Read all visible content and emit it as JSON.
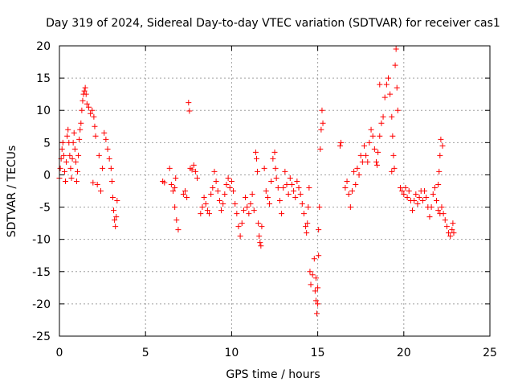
{
  "chart_data": {
    "type": "scatter",
    "title": "Day 319 of 2024, Sidereal Day-to-day VTEC variation (SDTVAR) for receiver cas1",
    "xlabel": "GPS time / hours",
    "ylabel": "SDTVAR / TECUs",
    "xlim": [
      0,
      25
    ],
    "ylim": [
      -25,
      20
    ],
    "xticks": [
      0,
      5,
      10,
      15,
      20,
      25
    ],
    "yticks": [
      -25,
      -20,
      -15,
      -10,
      -5,
      0,
      5,
      10,
      15,
      20
    ],
    "xtick_labels": [
      "0",
      "5",
      "10",
      "15",
      "20",
      "25"
    ],
    "ytick_labels": [
      "-25",
      "-20",
      "-15",
      "-10",
      "-5",
      "0",
      "5",
      "10",
      "15",
      "20"
    ],
    "grid": true,
    "marker": "plus",
    "series": [
      {
        "name": "SDTVAR",
        "color": "#ff0000",
        "points": [
          [
            0.0,
            -0.5
          ],
          [
            0.05,
            1.0
          ],
          [
            0.1,
            2.5
          ],
          [
            0.15,
            4.0
          ],
          [
            0.2,
            5.0
          ],
          [
            0.25,
            3.0
          ],
          [
            0.3,
            0.5
          ],
          [
            0.35,
            -1.0
          ],
          [
            0.4,
            2.0
          ],
          [
            0.45,
            6.0
          ],
          [
            0.5,
            7.0
          ],
          [
            0.55,
            5.0
          ],
          [
            0.6,
            3.0
          ],
          [
            0.65,
            1.0
          ],
          [
            0.7,
            -0.5
          ],
          [
            0.75,
            2.5
          ],
          [
            0.8,
            5.0
          ],
          [
            0.85,
            6.5
          ],
          [
            0.9,
            4.0
          ],
          [
            0.95,
            2.0
          ],
          [
            1.0,
            -1.0
          ],
          [
            1.05,
            0.5
          ],
          [
            1.1,
            3.0
          ],
          [
            1.15,
            5.5
          ],
          [
            1.2,
            7.0
          ],
          [
            1.25,
            8.0
          ],
          [
            1.3,
            10.0
          ],
          [
            1.35,
            11.5
          ],
          [
            1.4,
            12.5
          ],
          [
            1.45,
            13.0
          ],
          [
            1.5,
            13.5
          ],
          [
            1.55,
            12.5
          ],
          [
            1.6,
            11.0
          ],
          [
            1.7,
            10.5
          ],
          [
            1.8,
            9.5
          ],
          [
            1.9,
            10.0
          ],
          [
            2.0,
            9.0
          ],
          [
            2.05,
            7.5
          ],
          [
            2.1,
            6.0
          ],
          [
            1.95,
            -1.2
          ],
          [
            2.2,
            -1.5
          ],
          [
            2.3,
            3.0
          ],
          [
            2.4,
            -2.5
          ],
          [
            2.5,
            1.0
          ],
          [
            2.6,
            6.5
          ],
          [
            2.7,
            5.5
          ],
          [
            2.8,
            4.0
          ],
          [
            2.9,
            2.5
          ],
          [
            3.0,
            1.0
          ],
          [
            3.05,
            -1.0
          ],
          [
            3.1,
            -3.5
          ],
          [
            3.15,
            -5.5
          ],
          [
            3.2,
            -7.0
          ],
          [
            3.25,
            -8.0
          ],
          [
            3.3,
            -6.5
          ],
          [
            3.35,
            -4.0
          ],
          [
            6.0,
            -1.0
          ],
          [
            6.1,
            -1.2
          ],
          [
            6.4,
            1.0
          ],
          [
            6.5,
            -1.5
          ],
          [
            6.6,
            -2.5
          ],
          [
            6.7,
            -5.0
          ],
          [
            6.8,
            -7.0
          ],
          [
            6.9,
            -8.5
          ],
          [
            6.7,
            -2.0
          ],
          [
            6.75,
            -0.5
          ],
          [
            7.2,
            -3.0
          ],
          [
            7.3,
            -2.5
          ],
          [
            7.4,
            -3.5
          ],
          [
            7.5,
            11.2
          ],
          [
            7.55,
            9.9
          ],
          [
            7.6,
            1.0
          ],
          [
            7.7,
            0.8
          ],
          [
            7.8,
            1.5
          ],
          [
            7.9,
            0.5
          ],
          [
            8.0,
            -0.5
          ],
          [
            8.2,
            -6.0
          ],
          [
            8.3,
            -5.0
          ],
          [
            8.4,
            -3.5
          ],
          [
            8.5,
            -4.5
          ],
          [
            8.6,
            -5.5
          ],
          [
            8.7,
            -6.0
          ],
          [
            8.8,
            -3.0
          ],
          [
            8.9,
            -2.0
          ],
          [
            9.0,
            0.5
          ],
          [
            9.1,
            -1.0
          ],
          [
            9.2,
            -2.5
          ],
          [
            9.3,
            -4.0
          ],
          [
            9.4,
            -5.5
          ],
          [
            9.5,
            -4.5
          ],
          [
            9.6,
            -3.0
          ],
          [
            9.7,
            -1.5
          ],
          [
            9.8,
            -0.5
          ],
          [
            9.9,
            -2.0
          ],
          [
            10.0,
            -1.0
          ],
          [
            10.1,
            -2.5
          ],
          [
            10.2,
            -4.5
          ],
          [
            10.3,
            -6.0
          ],
          [
            10.4,
            -8.0
          ],
          [
            10.5,
            -9.5
          ],
          [
            10.6,
            -7.5
          ],
          [
            10.7,
            -5.5
          ],
          [
            10.8,
            -3.5
          ],
          [
            10.9,
            -5.0
          ],
          [
            11.0,
            -6.0
          ],
          [
            11.1,
            -4.5
          ],
          [
            11.2,
            -3.0
          ],
          [
            11.3,
            -5.5
          ],
          [
            11.4,
            3.5
          ],
          [
            11.45,
            2.5
          ],
          [
            11.5,
            0.5
          ],
          [
            11.55,
            -7.5
          ],
          [
            11.6,
            -9.5
          ],
          [
            11.65,
            -10.5
          ],
          [
            11.7,
            -11.0
          ],
          [
            11.75,
            -8.0
          ],
          [
            11.9,
            1.0
          ],
          [
            12.0,
            -2.5
          ],
          [
            12.1,
            -3.5
          ],
          [
            12.2,
            -4.5
          ],
          [
            12.3,
            -1.0
          ],
          [
            12.4,
            2.5
          ],
          [
            12.5,
            3.5
          ],
          [
            12.55,
            1.0
          ],
          [
            12.6,
            -0.5
          ],
          [
            12.7,
            -2.0
          ],
          [
            12.8,
            -4.0
          ],
          [
            12.9,
            -6.0
          ],
          [
            13.0,
            -2.0
          ],
          [
            13.1,
            0.5
          ],
          [
            13.2,
            -1.5
          ],
          [
            13.3,
            -3.0
          ],
          [
            13.4,
            -0.5
          ],
          [
            13.5,
            -1.5
          ],
          [
            13.6,
            -2.5
          ],
          [
            13.7,
            -3.5
          ],
          [
            13.8,
            -1.0
          ],
          [
            13.9,
            -2.0
          ],
          [
            14.0,
            -3.0
          ],
          [
            14.1,
            -4.5
          ],
          [
            14.2,
            -6.0
          ],
          [
            14.3,
            -8.0
          ],
          [
            14.35,
            -9.0
          ],
          [
            14.4,
            -7.5
          ],
          [
            14.45,
            -5.0
          ],
          [
            14.5,
            -2.0
          ],
          [
            14.55,
            -15.0
          ],
          [
            14.6,
            -17.0
          ],
          [
            14.7,
            -15.5
          ],
          [
            14.8,
            -13.0
          ],
          [
            14.85,
            -18.0
          ],
          [
            14.9,
            -19.5
          ],
          [
            14.95,
            -21.5
          ],
          [
            15.0,
            -17.5
          ],
          [
            15.05,
            -12.5
          ],
          [
            15.1,
            -5.0
          ],
          [
            15.15,
            4.0
          ],
          [
            15.2,
            7.0
          ],
          [
            15.25,
            10.0
          ],
          [
            15.3,
            8.0
          ],
          [
            15.0,
            -20.0
          ],
          [
            14.9,
            -16.0
          ],
          [
            15.05,
            -8.5
          ],
          [
            16.3,
            4.5
          ],
          [
            16.35,
            5.0
          ],
          [
            16.6,
            -2.0
          ],
          [
            16.7,
            -1.0
          ],
          [
            16.8,
            -3.0
          ],
          [
            16.9,
            -5.0
          ],
          [
            17.0,
            -2.5
          ],
          [
            17.1,
            0.5
          ],
          [
            17.2,
            -1.5
          ],
          [
            17.3,
            1.0
          ],
          [
            17.4,
            0.0
          ],
          [
            17.5,
            3.0
          ],
          [
            17.6,
            2.0
          ],
          [
            17.7,
            4.5
          ],
          [
            17.8,
            3.0
          ],
          [
            17.9,
            2.0
          ],
          [
            18.0,
            5.0
          ],
          [
            18.1,
            7.0
          ],
          [
            18.2,
            6.0
          ],
          [
            18.3,
            4.0
          ],
          [
            18.4,
            2.0
          ],
          [
            18.5,
            3.5
          ],
          [
            18.6,
            6.0
          ],
          [
            18.7,
            8.0
          ],
          [
            18.8,
            9.0
          ],
          [
            18.9,
            12.0
          ],
          [
            19.0,
            14.0
          ],
          [
            19.1,
            15.0
          ],
          [
            19.2,
            12.5
          ],
          [
            19.3,
            9.0
          ],
          [
            19.35,
            6.0
          ],
          [
            19.4,
            3.0
          ],
          [
            19.45,
            1.0
          ],
          [
            19.5,
            17.0
          ],
          [
            19.55,
            19.5
          ],
          [
            19.6,
            13.5
          ],
          [
            19.65,
            10.0
          ],
          [
            19.3,
            0.5
          ],
          [
            18.45,
            1.5
          ],
          [
            18.6,
            14.0
          ],
          [
            19.8,
            -2.0
          ],
          [
            19.9,
            -2.5
          ],
          [
            20.0,
            -3.0
          ],
          [
            20.1,
            -2.0
          ],
          [
            20.2,
            -3.5
          ],
          [
            20.3,
            -2.5
          ],
          [
            20.4,
            -4.0
          ],
          [
            20.5,
            -5.5
          ],
          [
            20.6,
            -4.0
          ],
          [
            20.7,
            -3.0
          ],
          [
            20.8,
            -4.5
          ],
          [
            20.9,
            -3.5
          ],
          [
            21.0,
            -2.5
          ],
          [
            21.1,
            -4.0
          ],
          [
            21.2,
            -2.5
          ],
          [
            21.3,
            -3.5
          ],
          [
            21.4,
            -5.0
          ],
          [
            21.5,
            -6.5
          ],
          [
            21.6,
            -5.0
          ],
          [
            21.7,
            -3.0
          ],
          [
            21.8,
            -2.0
          ],
          [
            21.9,
            -4.0
          ],
          [
            22.0,
            -5.5
          ],
          [
            22.1,
            -6.0
          ],
          [
            22.2,
            -5.0
          ],
          [
            22.15,
            5.5
          ],
          [
            22.1,
            3.0
          ],
          [
            22.05,
            0.5
          ],
          [
            22.0,
            -1.5
          ],
          [
            22.25,
            4.5
          ],
          [
            22.3,
            -6.0
          ],
          [
            22.4,
            -7.0
          ],
          [
            22.5,
            -8.0
          ],
          [
            22.6,
            -9.0
          ],
          [
            22.7,
            -9.5
          ],
          [
            22.8,
            -8.5
          ],
          [
            22.85,
            -7.5
          ],
          [
            22.9,
            -9.0
          ]
        ]
      }
    ]
  }
}
